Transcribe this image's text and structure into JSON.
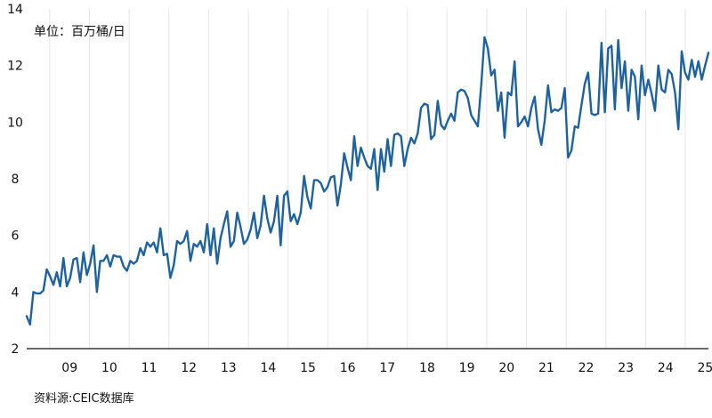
{
  "chart_data": {
    "type": "line",
    "title": "",
    "unit_label": "单位：百万桶/日",
    "source": "资料源:CEIC数据库",
    "xlabel": "",
    "ylabel": "",
    "ylim": [
      2,
      14
    ],
    "y_ticks": [
      2,
      4,
      6,
      8,
      10,
      12,
      14
    ],
    "x_range": [
      2008.42,
      2025.58
    ],
    "x_tick_labels": [
      "09",
      "10",
      "11",
      "12",
      "13",
      "14",
      "15",
      "16",
      "17",
      "18",
      "19",
      "20",
      "21",
      "22",
      "23",
      "24",
      "25"
    ],
    "grid": "vertical",
    "line_color": "#1f62a0",
    "series": [
      {
        "values": [
          3.15,
          2.85,
          4.0,
          3.95,
          3.95,
          4.05,
          4.8,
          4.55,
          4.25,
          4.7,
          4.2,
          5.2,
          4.2,
          4.5,
          5.15,
          5.2,
          4.35,
          5.4,
          4.6,
          5.0,
          5.65,
          4.0,
          5.1,
          5.1,
          5.3,
          4.9,
          5.3,
          5.25,
          5.25,
          4.9,
          4.75,
          5.1,
          5.0,
          5.1,
          5.55,
          5.3,
          5.75,
          5.6,
          5.75,
          5.4,
          6.25,
          5.3,
          5.35,
          4.5,
          4.95,
          5.8,
          5.7,
          5.8,
          6.15,
          5.1,
          5.7,
          5.6,
          5.8,
          5.4,
          6.4,
          5.3,
          6.25,
          5.0,
          5.9,
          6.4,
          6.85,
          5.6,
          5.8,
          6.8,
          6.3,
          5.7,
          5.85,
          6.2,
          6.8,
          5.9,
          6.35,
          7.4,
          6.6,
          6.1,
          6.5,
          7.4,
          5.65,
          7.4,
          7.55,
          6.5,
          6.75,
          6.4,
          6.8,
          8.1,
          7.35,
          6.95,
          7.95,
          7.95,
          7.85,
          7.55,
          7.7,
          8.05,
          8.1,
          7.05,
          7.8,
          8.9,
          8.4,
          7.95,
          9.5,
          8.45,
          9.1,
          8.75,
          8.45,
          8.35,
          9.05,
          7.6,
          9.05,
          8.25,
          9.4,
          8.45,
          9.55,
          9.6,
          9.5,
          8.45,
          9.05,
          9.45,
          9.25,
          9.6,
          10.5,
          10.65,
          10.6,
          9.4,
          9.55,
          10.75,
          9.9,
          9.75,
          10.05,
          10.3,
          10.05,
          11.05,
          11.15,
          11.1,
          10.85,
          10.25,
          10.05,
          9.85,
          11.3,
          13.0,
          12.6,
          11.65,
          11.85,
          10.4,
          11.05,
          9.45,
          11.05,
          10.95,
          12.15,
          9.85,
          10.0,
          10.2,
          9.85,
          10.5,
          10.9,
          9.75,
          9.2,
          10.05,
          11.3,
          10.35,
          10.45,
          10.4,
          10.5,
          11.2,
          8.75,
          9.0,
          9.85,
          9.8,
          10.6,
          11.35,
          11.75,
          10.3,
          10.25,
          10.3,
          12.8,
          10.35,
          12.6,
          12.7,
          10.45,
          12.9,
          11.2,
          12.15,
          10.4,
          11.85,
          11.6,
          10.1,
          12.0,
          10.95,
          11.5,
          11.0,
          10.4,
          12.0,
          11.15,
          11.05,
          11.85,
          11.7,
          11.05,
          9.75,
          12.5,
          11.75,
          11.5,
          12.2,
          11.6,
          12.15,
          11.5,
          12.0,
          12.45
        ]
      }
    ]
  }
}
